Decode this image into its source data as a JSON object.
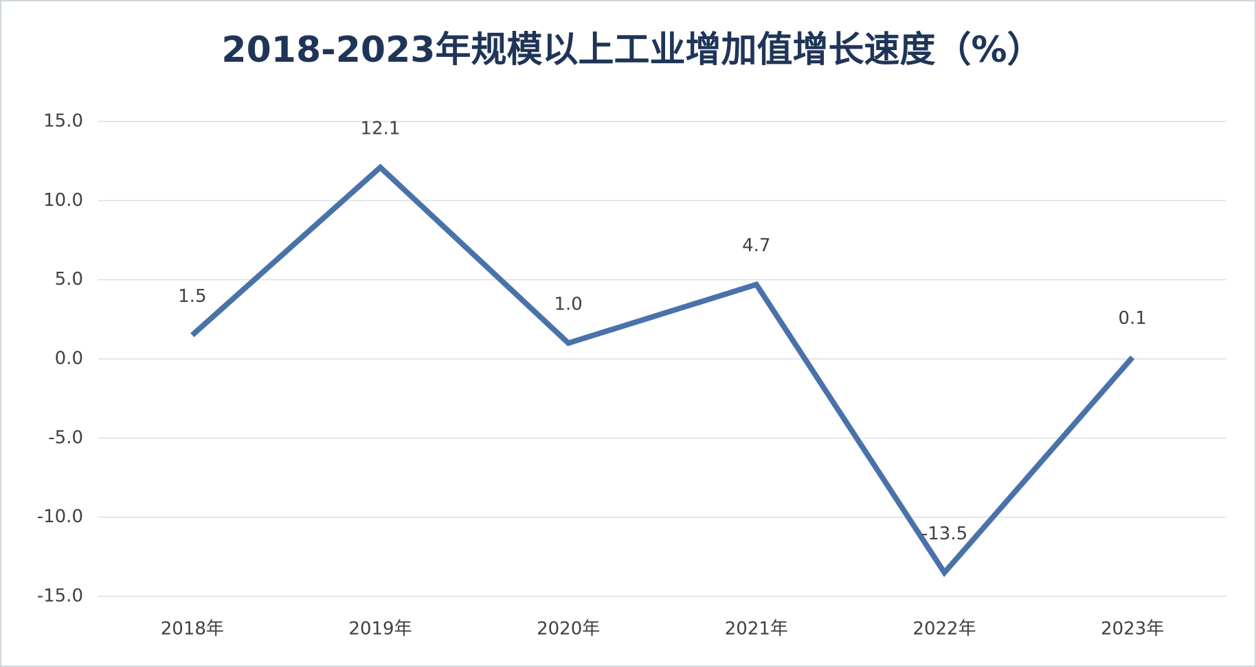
{
  "chart_data": {
    "type": "line",
    "title": "2018-2023年规模以上工业增加值增长速度（%）",
    "categories": [
      "2018年",
      "2019年",
      "2020年",
      "2021年",
      "2022年",
      "2023年"
    ],
    "values": [
      1.5,
      12.1,
      1.0,
      4.7,
      -13.5,
      0.1
    ],
    "value_labels": [
      "1.5",
      "12.1",
      "1.0",
      "4.7",
      "-13.5",
      "0.1"
    ],
    "color": "#4a72aa",
    "ylim": [
      -15,
      15
    ],
    "yticks": [
      {
        "value": -15,
        "label": "-15.0"
      },
      {
        "value": -10,
        "label": "-10.0"
      },
      {
        "value": -5,
        "label": "-5.0"
      },
      {
        "value": 0,
        "label": "0.0"
      },
      {
        "value": 5,
        "label": "5.0"
      },
      {
        "value": 10,
        "label": "10.0"
      },
      {
        "value": 15,
        "label": "15.0"
      }
    ],
    "grid": true
  }
}
